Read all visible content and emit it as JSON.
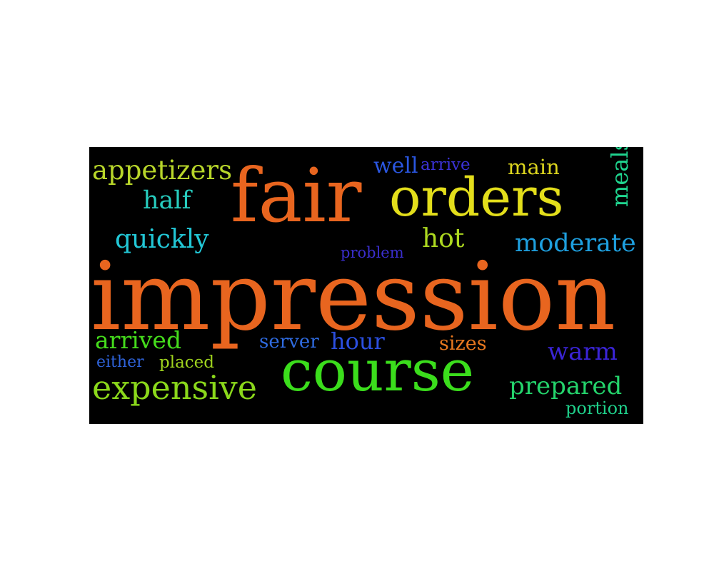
{
  "words": {
    "impression": {
      "text": "impression",
      "color": "#E8651F"
    },
    "fair": {
      "text": "fair",
      "color": "#E8651F"
    },
    "orders": {
      "text": "orders",
      "color": "#E3DE1B"
    },
    "course": {
      "text": "course",
      "color": "#3BDD1C"
    },
    "expensive": {
      "text": "expensive",
      "color": "#8BD81B"
    },
    "appetizers": {
      "text": "appetizers",
      "color": "#B8D62A"
    },
    "half": {
      "text": "half",
      "color": "#27CDBF"
    },
    "quickly": {
      "text": "quickly",
      "color": "#22C7D6"
    },
    "hot": {
      "text": "hot",
      "color": "#ADD920"
    },
    "moderate": {
      "text": "moderate",
      "color": "#1E9FDE"
    },
    "main": {
      "text": "main",
      "color": "#DCD51E"
    },
    "meals": {
      "text": "meals",
      "color": "#1FD58F"
    },
    "well": {
      "text": "well",
      "color": "#2A56E0"
    },
    "arrive": {
      "text": "arrive",
      "color": "#3B32D8"
    },
    "problem": {
      "text": "problem",
      "color": "#3A2ECC"
    },
    "arrived": {
      "text": "arrived",
      "color": "#45DC1C"
    },
    "either": {
      "text": "either",
      "color": "#2E62D8"
    },
    "placed": {
      "text": "placed",
      "color": "#9FD31E"
    },
    "server": {
      "text": "server",
      "color": "#2F6BE0"
    },
    "hour": {
      "text": "hour",
      "color": "#2B4FE0"
    },
    "sizes": {
      "text": "sizes",
      "color": "#E8781F"
    },
    "warm": {
      "text": "warm",
      "color": "#3A24D6"
    },
    "prepared": {
      "text": "prepared",
      "color": "#24D46C"
    },
    "portion": {
      "text": "portion",
      "color": "#1FCF8A"
    }
  }
}
